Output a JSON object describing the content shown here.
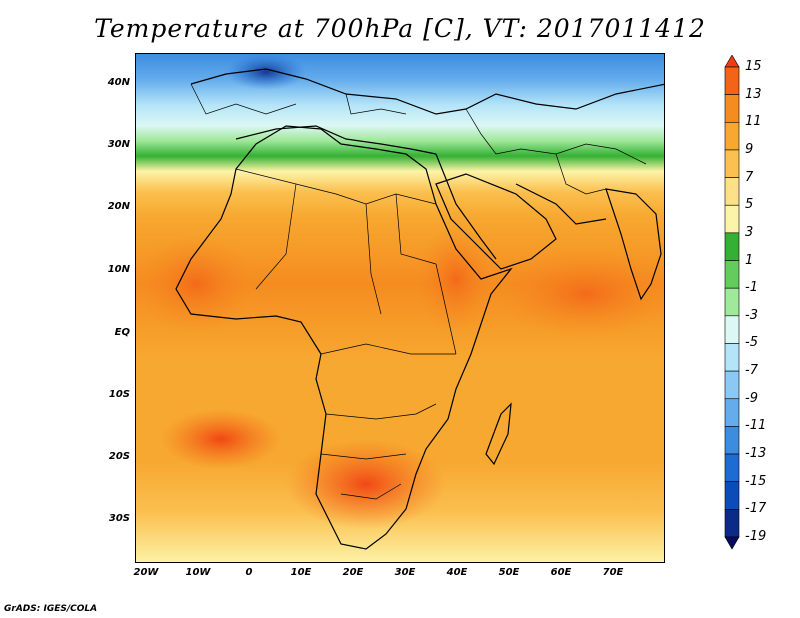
{
  "title": "Temperature at 700hPa [C], VT: 2017011412",
  "credit": "GrADS: IGES/COLA",
  "map": {
    "lat_labels": [
      "40N",
      "30N",
      "20N",
      "10N",
      "EQ",
      "10S",
      "20S",
      "30S"
    ],
    "lon_labels": [
      "20W",
      "10W",
      "0",
      "10E",
      "20E",
      "30E",
      "40E",
      "50E",
      "60E",
      "70E"
    ]
  },
  "colorbar": {
    "labels": [
      "15",
      "13",
      "11",
      "9",
      "7",
      "5",
      "3",
      "1",
      "-1",
      "-3",
      "-5",
      "-7",
      "-9",
      "-11",
      "-13",
      "-15",
      "-17",
      "-19"
    ],
    "colors": [
      "#f03c10",
      "#f46418",
      "#f58c20",
      "#f7a830",
      "#fbc050",
      "#fde088",
      "#fcf4a8",
      "#34b034",
      "#64cc5c",
      "#a0e89a",
      "#dcf8f4",
      "#b4e4f8",
      "#8cc8f4",
      "#64acec",
      "#3c8ce0",
      "#1c6cd4",
      "#0c4cb8",
      "#0c2a88",
      "#0a0a60"
    ]
  }
}
